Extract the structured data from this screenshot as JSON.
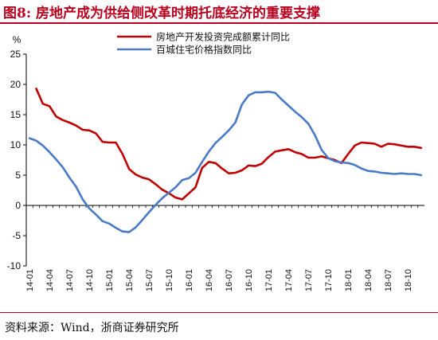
{
  "figure": {
    "title": "图8:   房地产成为供给侧改革时期托底经济的重要支撑",
    "source": "资料来源：Wind，浙商证券研究所"
  },
  "colors": {
    "accent": "#b8001e",
    "series1": "#c00000",
    "series2": "#4a7ac7"
  },
  "chart_data": {
    "type": "line",
    "ylabel": "%",
    "ylim": [
      -10,
      25
    ],
    "yticks": [
      -10,
      -5,
      0,
      5,
      10,
      15,
      20,
      25
    ],
    "xlabels": [
      "14-01",
      "14-04",
      "14-07",
      "14-10",
      "15-01",
      "15-04",
      "15-07",
      "15-10",
      "16-01",
      "16-04",
      "16-07",
      "16-10",
      "17-01",
      "17-04",
      "17-07",
      "17-10",
      "18-01",
      "18-04",
      "18-07",
      "18-10"
    ],
    "x": [
      "14-01",
      "14-02",
      "14-03",
      "14-04",
      "14-05",
      "14-06",
      "14-07",
      "14-08",
      "14-09",
      "14-10",
      "14-11",
      "14-12",
      "15-01",
      "15-02",
      "15-03",
      "15-04",
      "15-05",
      "15-06",
      "15-07",
      "15-08",
      "15-09",
      "15-10",
      "15-11",
      "15-12",
      "16-01",
      "16-02",
      "16-03",
      "16-04",
      "16-05",
      "16-06",
      "16-07",
      "16-08",
      "16-09",
      "16-10",
      "16-11",
      "16-12",
      "17-01",
      "17-02",
      "17-03",
      "17-04",
      "17-05",
      "17-06",
      "17-07",
      "17-08",
      "17-09",
      "17-10",
      "17-11",
      "17-12",
      "18-01",
      "18-02",
      "18-03",
      "18-04",
      "18-05",
      "18-06",
      "18-07",
      "18-08",
      "18-09",
      "18-10",
      "18-11",
      "18-12"
    ],
    "grid": false,
    "legend_position": "top-right",
    "series": [
      {
        "name": "房地产开发投资完成额累计同比",
        "color": "#c00000",
        "values": [
          null,
          19.3,
          16.8,
          16.4,
          14.7,
          14.1,
          13.7,
          13.2,
          12.5,
          12.4,
          11.9,
          10.5,
          10.4,
          10.4,
          8.5,
          6.0,
          5.1,
          4.6,
          4.3,
          3.5,
          2.6,
          2.0,
          1.3,
          1.0,
          2.0,
          3.0,
          6.2,
          7.2,
          7.0,
          6.1,
          5.3,
          5.4,
          5.8,
          6.6,
          6.5,
          6.9,
          8.0,
          8.9,
          9.1,
          9.3,
          8.8,
          8.5,
          7.9,
          7.9,
          8.1,
          7.8,
          7.5,
          7.0,
          8.5,
          9.9,
          10.4,
          10.3,
          10.2,
          9.7,
          10.2,
          10.1,
          9.9,
          9.7,
          9.7,
          9.5
        ],
        "start_index": 1
      },
      {
        "name": "百城住宅价格指数同比",
        "color": "#4a7ac7",
        "values": [
          11.1,
          10.7,
          9.9,
          8.8,
          7.6,
          6.3,
          4.6,
          3.1,
          1.0,
          -0.5,
          -1.5,
          -2.6,
          -3.0,
          -3.7,
          -4.3,
          -4.4,
          -3.6,
          -2.4,
          -1.1,
          0.1,
          1.2,
          2.1,
          3.0,
          4.2,
          4.5,
          5.4,
          7.2,
          8.9,
          10.3,
          11.3,
          12.4,
          13.7,
          16.7,
          18.2,
          18.7,
          18.7,
          18.8,
          18.6,
          17.5,
          16.5,
          15.5,
          14.6,
          13.5,
          11.6,
          9.2,
          7.8,
          7.3,
          7.1,
          7.0,
          6.7,
          6.1,
          5.7,
          5.6,
          5.4,
          5.3,
          5.2,
          5.3,
          5.2,
          5.2,
          5.0
        ]
      }
    ]
  }
}
